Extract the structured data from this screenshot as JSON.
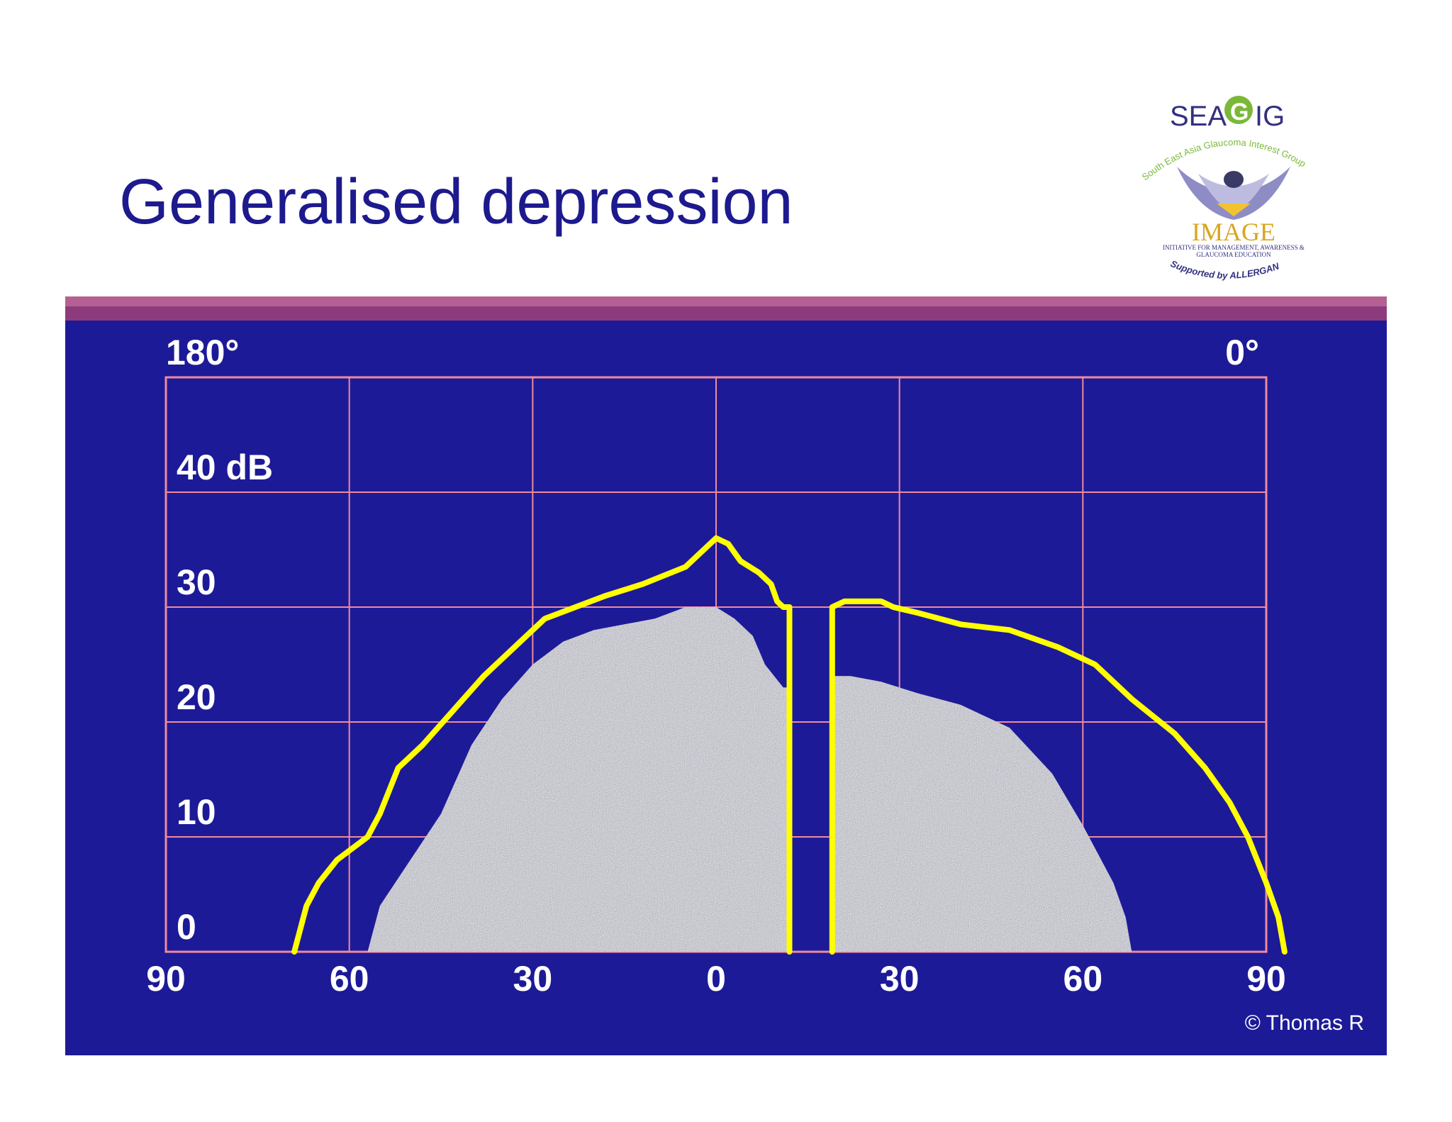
{
  "title": "Generalised depression",
  "logo": {
    "name": "SEAGIG",
    "arc_text": "South East Asia Glaucoma Interest Group",
    "image_text": "IMAGE",
    "initiative": "INITIATIVE FOR MANAGEMENT, AWARENESS & GLAUCOMA EDUCATION",
    "supported": "Supported by ALLERGAN"
  },
  "credit": "© Thomas R",
  "colors": {
    "panel": "#1d1a98",
    "grid": "#f08a9a",
    "outline": "#ffff00",
    "fill": "#b8b8c0",
    "title": "#1d1a8e"
  },
  "chart_data": {
    "type": "area",
    "corner_labels": {
      "left": "180°",
      "right": "0°"
    },
    "x_ticks": [
      "90",
      "60",
      "30",
      "0",
      "30",
      "60",
      "90"
    ],
    "x_tick_values": [
      -90,
      -60,
      -30,
      0,
      30,
      60,
      90
    ],
    "y_ticks": [
      "40 dB",
      "30",
      "20",
      "10",
      "0"
    ],
    "y_tick_values": [
      40,
      30,
      20,
      10,
      0
    ],
    "xlim": [
      -90,
      90
    ],
    "ylim": [
      0,
      50
    ],
    "grid": true,
    "blind_spot": [
      12,
      19
    ],
    "series": [
      {
        "role": "outline",
        "segments": [
          [
            [
              -69,
              0
            ],
            [
              -68,
              2
            ],
            [
              -67,
              4
            ],
            [
              -65,
              6
            ],
            [
              -62,
              8
            ],
            [
              -57,
              10
            ],
            [
              -55,
              12
            ],
            [
              -52,
              16
            ],
            [
              -48,
              18
            ],
            [
              -43,
              21
            ],
            [
              -38,
              24
            ],
            [
              -32,
              27
            ],
            [
              -28,
              29
            ],
            [
              -23,
              30
            ],
            [
              -18,
              31
            ],
            [
              -12,
              32
            ],
            [
              -5,
              33.5
            ],
            [
              0,
              36
            ],
            [
              2,
              35.5
            ],
            [
              4,
              34
            ],
            [
              7,
              33
            ],
            [
              9,
              32
            ],
            [
              10,
              30.5
            ],
            [
              11,
              30
            ],
            [
              12,
              30
            ],
            [
              12,
              0
            ]
          ],
          [
            [
              19,
              0
            ],
            [
              19,
              30
            ],
            [
              21,
              30.5
            ],
            [
              27,
              30.5
            ],
            [
              29,
              30
            ],
            [
              33,
              29.5
            ],
            [
              40,
              28.5
            ],
            [
              48,
              28
            ],
            [
              56,
              26.5
            ],
            [
              62,
              25
            ],
            [
              68,
              22
            ],
            [
              75,
              19
            ],
            [
              80,
              16
            ],
            [
              84,
              13
            ],
            [
              87,
              10
            ],
            [
              90,
              6
            ],
            [
              92,
              3
            ],
            [
              93,
              0
            ]
          ]
        ]
      },
      {
        "role": "fill",
        "segments": [
          [
            [
              -57,
              0
            ],
            [
              -55,
              4
            ],
            [
              -50,
              8
            ],
            [
              -45,
              12
            ],
            [
              -40,
              18
            ],
            [
              -35,
              22
            ],
            [
              -30,
              25
            ],
            [
              -25,
              27
            ],
            [
              -20,
              28
            ],
            [
              -15,
              28.5
            ],
            [
              -10,
              29
            ],
            [
              -5,
              30
            ],
            [
              0,
              30
            ],
            [
              3,
              29
            ],
            [
              6,
              27.5
            ],
            [
              8,
              25
            ],
            [
              11,
              23
            ],
            [
              12,
              23
            ],
            [
              12,
              0
            ]
          ],
          [
            [
              19,
              0
            ],
            [
              19,
              24
            ],
            [
              22,
              24
            ],
            [
              27,
              23.5
            ],
            [
              33,
              22.5
            ],
            [
              40,
              21.5
            ],
            [
              48,
              19.5
            ],
            [
              55,
              15.5
            ],
            [
              60,
              11
            ],
            [
              65,
              6
            ],
            [
              67,
              3
            ],
            [
              68,
              0
            ]
          ]
        ]
      }
    ]
  }
}
